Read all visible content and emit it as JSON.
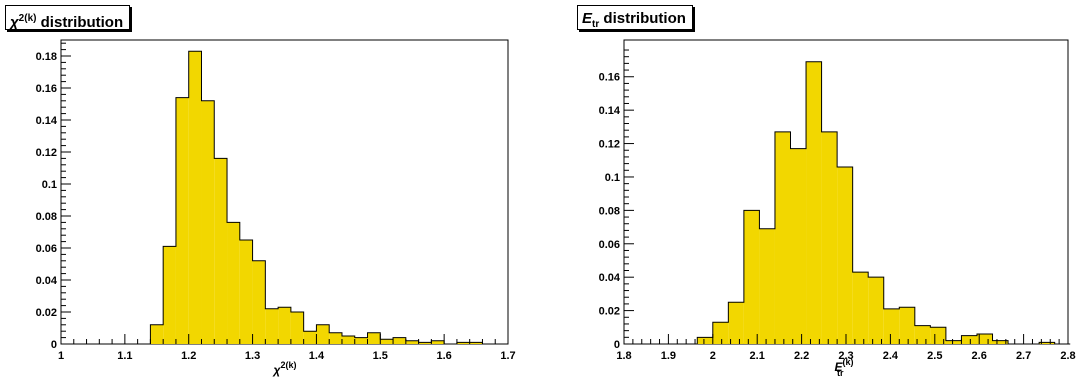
{
  "colors": {
    "fill": "#f2d700",
    "stroke": "#000000",
    "background": "#ffffff"
  },
  "chart_data": [
    {
      "type": "bar",
      "title": {
        "text": "distribution",
        "symbol": "χ",
        "superscript": "2(k)"
      },
      "xlabel": {
        "symbol": "χ",
        "superscript": "2(k)"
      },
      "ylabel": "",
      "xlim": [
        1,
        1.7
      ],
      "ylim": [
        0,
        0.19
      ],
      "bin_width": 0.02,
      "xticks": [
        1,
        1.1,
        1.2,
        1.3,
        1.4,
        1.5,
        1.6,
        1.7
      ],
      "xtick_labels": [
        "1",
        "1.1",
        "1.2",
        "1.3",
        "1.4",
        "1.5",
        "1.6",
        "1.7"
      ],
      "yticks": [
        0,
        0.02,
        0.04,
        0.06,
        0.08,
        0.1,
        0.12,
        0.14,
        0.16,
        0.18
      ],
      "ytick_labels": [
        "0",
        "0.02",
        "0.04",
        "0.06",
        "0.08",
        "0.1",
        "0.12",
        "0.14",
        "0.16",
        "0.18"
      ],
      "x": [
        1.14,
        1.16,
        1.18,
        1.2,
        1.22,
        1.24,
        1.26,
        1.28,
        1.3,
        1.32,
        1.34,
        1.36,
        1.38,
        1.4,
        1.42,
        1.44,
        1.46,
        1.48,
        1.5,
        1.52,
        1.54,
        1.56,
        1.58,
        1.6,
        1.62,
        1.64
      ],
      "values": [
        0.012,
        0.061,
        0.154,
        0.183,
        0.152,
        0.116,
        0.076,
        0.065,
        0.052,
        0.022,
        0.023,
        0.02,
        0.008,
        0.012,
        0.007,
        0.005,
        0.004,
        0.007,
        0.003,
        0.004,
        0.002,
        0.001,
        0.002,
        0.0,
        0.001,
        0.001
      ]
    },
    {
      "type": "bar",
      "title": {
        "text": "distribution",
        "symbol": "E",
        "subscript": "tr"
      },
      "xlabel": {
        "symbol": "E",
        "superscript": "(k)",
        "subscript": "tr"
      },
      "ylabel": "",
      "xlim": [
        1.8,
        2.8
      ],
      "ylim": [
        0,
        0.182
      ],
      "bin_width": 0.035,
      "xticks": [
        1.8,
        1.9,
        2.0,
        2.1,
        2.2,
        2.3,
        2.4,
        2.5,
        2.6,
        2.7,
        2.8
      ],
      "xtick_labels": [
        "1.8",
        "1.9",
        "2",
        "2.1",
        "2.2",
        "2.3",
        "2.4",
        "2.5",
        "2.6",
        "2.7",
        "2.8"
      ],
      "yticks": [
        0,
        0.02,
        0.04,
        0.06,
        0.08,
        0.1,
        0.12,
        0.14,
        0.16
      ],
      "ytick_labels": [
        "0",
        "0.02",
        "0.04",
        "0.06",
        "0.08",
        "0.1",
        "0.12",
        "0.14",
        "0.16"
      ],
      "x": [
        1.965,
        2.0,
        2.035,
        2.07,
        2.105,
        2.14,
        2.175,
        2.21,
        2.245,
        2.28,
        2.315,
        2.35,
        2.385,
        2.42,
        2.455,
        2.49,
        2.525,
        2.56,
        2.595,
        2.63,
        2.665,
        2.7,
        2.735,
        2.77
      ],
      "values": [
        0.004,
        0.013,
        0.025,
        0.08,
        0.069,
        0.127,
        0.117,
        0.169,
        0.127,
        0.106,
        0.043,
        0.04,
        0.021,
        0.022,
        0.011,
        0.01,
        0.002,
        0.005,
        0.006,
        0.002,
        0.0,
        0.0,
        0.001,
        0.0
      ]
    }
  ]
}
